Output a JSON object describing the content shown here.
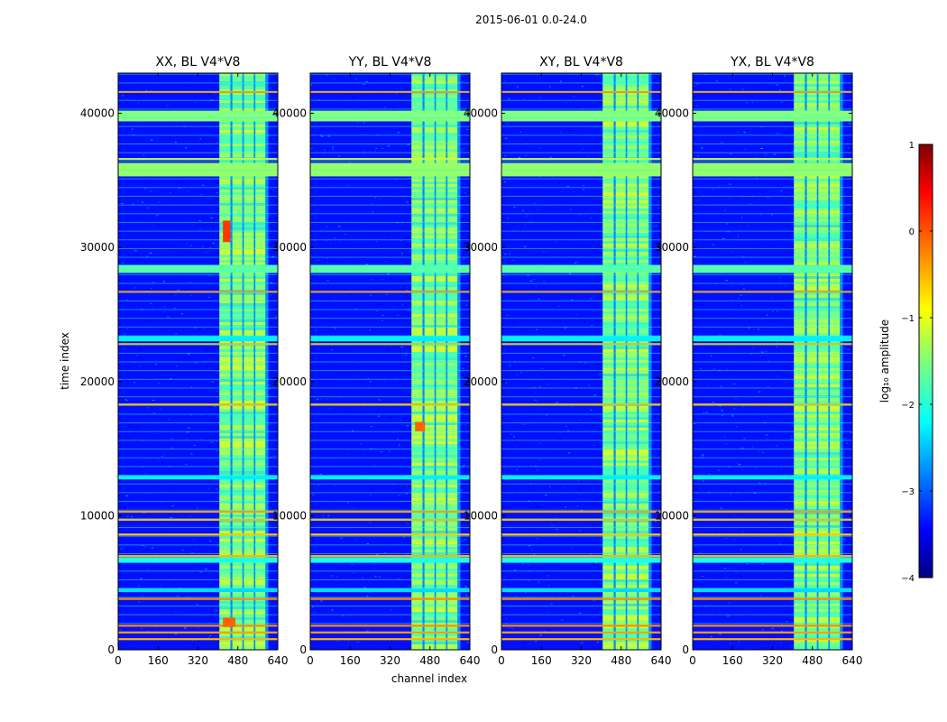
{
  "figure": {
    "suptitle": "2015-06-01 0.0-24.0"
  },
  "chart_data": {
    "type": "heatmap",
    "suptitle": "2015-06-01 0.0-24.0",
    "xlabel": "channel index",
    "ylabel": "time index",
    "xlim": [
      0,
      640
    ],
    "ylim": [
      0,
      43000
    ],
    "xticks": [
      0,
      160,
      320,
      480,
      640
    ],
    "yticks": [
      0,
      10000,
      20000,
      30000,
      40000
    ],
    "colorbar": {
      "label": "log₁₀ amplitude",
      "range": [
        -4,
        1
      ],
      "ticks": [
        1,
        0,
        -1,
        -2,
        -3,
        -4
      ],
      "tick_labels": [
        "1",
        "0",
        "−1",
        "−2",
        "−3",
        "−4"
      ],
      "colormap": "jet"
    },
    "panels": [
      {
        "title": "XX, BL V4*V8"
      },
      {
        "title": "YY, BL V4*V8"
      },
      {
        "title": "XY, BL V4*V8"
      },
      {
        "title": "YX, BL V4*V8"
      }
    ],
    "features": {
      "background_log_amplitude": -3.3,
      "bright_channel_band": [
        406,
        602
      ],
      "bright_band_channel_gaps": [
        [
          450,
          458
        ],
        [
          498,
          504
        ],
        [
          544,
          550
        ],
        [
          590,
          602
        ]
      ],
      "bright_band_log_amplitude": -1.4,
      "horizontal_stripes_time_index": [
        {
          "range": [
            39400,
            40200
          ],
          "log_amplitude": -1.5
        },
        {
          "range": [
            35300,
            36300
          ],
          "log_amplitude": -1.4
        },
        {
          "range": [
            28100,
            28700
          ],
          "log_amplitude": -1.7
        },
        {
          "range": [
            23000,
            23400
          ],
          "log_amplitude": -2.2
        },
        {
          "range": [
            12700,
            13000
          ],
          "log_amplitude": -2.2
        },
        {
          "range": [
            6500,
            6900
          ],
          "log_amplitude": -2.0
        },
        {
          "range": [
            4300,
            4600
          ],
          "log_amplitude": -2.3
        }
      ],
      "thin_lines_time_index": [
        {
          "at": 41600,
          "log_amplitude": -0.3
        },
        {
          "at": 36600,
          "log_amplitude": -1.2
        },
        {
          "at": 26700,
          "log_amplitude": -0.3
        },
        {
          "at": 22800,
          "log_amplitude": -0.5
        },
        {
          "at": 18300,
          "log_amplitude": -0.5
        },
        {
          "at": 10300,
          "log_amplitude": -0.4
        },
        {
          "at": 9700,
          "log_amplitude": -0.5
        },
        {
          "at": 8600,
          "log_amplitude": -0.6
        },
        {
          "at": 7000,
          "log_amplitude": -0.5
        },
        {
          "at": 3800,
          "log_amplitude": -0.3
        },
        {
          "at": 1800,
          "log_amplitude": -0.3
        },
        {
          "at": 1300,
          "log_amplitude": -0.4
        },
        {
          "at": 800,
          "log_amplitude": -0.5
        }
      ],
      "hot_spots": [
        {
          "panel": 0,
          "channel": [
            420,
            450
          ],
          "time": [
            30400,
            32000
          ],
          "log_amplitude": 0.1
        },
        {
          "panel": 1,
          "channel": [
            420,
            460
          ],
          "time": [
            16300,
            17000
          ],
          "log_amplitude": -0.1
        },
        {
          "panel": 0,
          "channel": [
            420,
            470
          ],
          "time": [
            1700,
            2400
          ],
          "log_amplitude": -0.1
        }
      ]
    }
  }
}
